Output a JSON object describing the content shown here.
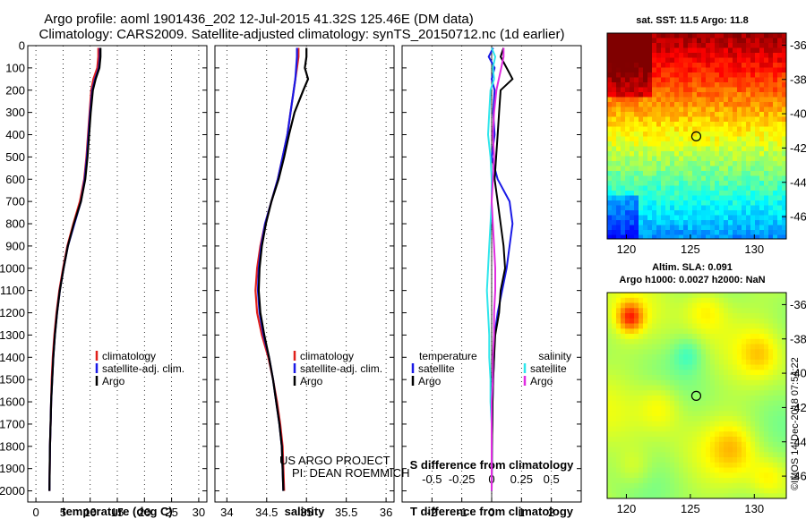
{
  "figure": {
    "title_line1": "Argo profile: aoml 1901436_202 12-Jul-2015 41.32S 125.46E (DM data)",
    "title_line2": "Climatology: CARS2009. Satellite-adjusted climatology: synTS_20150712.nc (1d earlier)",
    "credit_line1": "US ARGO PROJECT",
    "credit_line2": "PI: DEAN ROEMMICH",
    "stamp": "©IMOS 14-Dec-2018 07:54:22"
  },
  "colors": {
    "climatology": "#e0201b",
    "satellite_adj": "#1a1ae6",
    "argo": "#000000",
    "satellite_S": "#2fe6ec",
    "argo_S": "#e02ce0"
  },
  "chart_data": [
    {
      "type": "line",
      "panel": "temperature",
      "xlabel": "temperature (deg C)",
      "ylabel": "",
      "xlim": [
        -1.5,
        31.5
      ],
      "ylim": [
        2050,
        0
      ],
      "xticks": [
        0,
        5,
        10,
        15,
        20,
        25,
        30
      ],
      "yticks": [
        0,
        100,
        200,
        300,
        400,
        500,
        600,
        700,
        800,
        900,
        1000,
        1100,
        1200,
        1300,
        1400,
        1500,
        1600,
        1700,
        1800,
        1900,
        2000
      ],
      "legend": [
        "climatology",
        "satellite-adj. clim.",
        "Argo"
      ],
      "series": [
        {
          "name": "climatology",
          "color_key": "climatology",
          "x": [
            11.5,
            11.5,
            11.3,
            10.6,
            10.2,
            9.9,
            9.6,
            9.3,
            8.9,
            8.1,
            6.9,
            5.8,
            5.0,
            4.3,
            3.8,
            3.4,
            3.1,
            2.9,
            2.8,
            2.7,
            2.6,
            2.5
          ],
          "y": [
            10,
            50,
            100,
            150,
            200,
            300,
            400,
            500,
            600,
            700,
            800,
            900,
            1000,
            1100,
            1200,
            1300,
            1400,
            1500,
            1600,
            1700,
            1800,
            2000
          ]
        },
        {
          "name": "satellite-adj. clim.",
          "color_key": "satellite_adj",
          "x": [
            11.8,
            11.8,
            11.6,
            10.9,
            10.4,
            10.0,
            9.7,
            9.4,
            9.0,
            8.3,
            7.1,
            5.9,
            5.1,
            4.4,
            3.9,
            3.5,
            3.2,
            3.0,
            2.8,
            2.7,
            2.6,
            2.5
          ],
          "y": [
            10,
            50,
            100,
            150,
            200,
            300,
            400,
            500,
            600,
            700,
            800,
            900,
            1000,
            1100,
            1200,
            1300,
            1400,
            1500,
            1600,
            1700,
            1800,
            2000
          ]
        },
        {
          "name": "Argo",
          "color_key": "argo",
          "x": [
            11.9,
            11.9,
            11.7,
            11.0,
            10.5,
            10.1,
            9.8,
            9.5,
            9.1,
            8.3,
            7.0,
            5.9,
            5.1,
            4.4,
            3.9,
            3.5,
            3.2,
            3.0,
            2.8,
            2.7,
            2.6,
            2.5
          ],
          "y": [
            10,
            50,
            100,
            150,
            200,
            300,
            400,
            500,
            600,
            700,
            800,
            900,
            1000,
            1100,
            1200,
            1300,
            1400,
            1500,
            1600,
            1700,
            1800,
            2000
          ]
        }
      ]
    },
    {
      "type": "line",
      "panel": "salinity",
      "xlabel": "salinity",
      "ylabel": "",
      "xlim": [
        33.85,
        36.1
      ],
      "ylim": [
        2050,
        0
      ],
      "xticks": [
        34,
        34.5,
        35,
        35.5,
        36
      ],
      "xtick_labels": [
        "34",
        "34.5",
        "35",
        "35.5",
        "36"
      ],
      "legend": [
        "climatology",
        "satellite-adj. clim.",
        "Argo"
      ],
      "series": [
        {
          "name": "climatology",
          "color_key": "climatology",
          "x": [
            34.9,
            34.9,
            34.88,
            34.86,
            34.84,
            34.8,
            34.76,
            34.7,
            34.64,
            34.56,
            34.48,
            34.42,
            34.38,
            34.36,
            34.38,
            34.44,
            34.52,
            34.58,
            34.63,
            34.67,
            34.7,
            34.72
          ],
          "y": [
            10,
            50,
            100,
            150,
            200,
            300,
            400,
            500,
            600,
            700,
            800,
            900,
            1000,
            1100,
            1200,
            1300,
            1400,
            1500,
            1600,
            1700,
            1800,
            2000
          ]
        },
        {
          "name": "satellite-adj. clim.",
          "color_key": "satellite_adj",
          "x": [
            34.88,
            34.88,
            34.87,
            34.86,
            34.84,
            34.8,
            34.76,
            34.7,
            34.64,
            34.56,
            34.48,
            34.43,
            34.4,
            34.39,
            34.41,
            34.46,
            34.53,
            34.58,
            34.62,
            34.66,
            34.69,
            34.71
          ],
          "y": [
            10,
            50,
            100,
            150,
            200,
            300,
            400,
            500,
            600,
            700,
            800,
            900,
            1000,
            1100,
            1200,
            1300,
            1400,
            1500,
            1600,
            1700,
            1800,
            2000
          ]
        },
        {
          "name": "Argo",
          "color_key": "argo",
          "x": [
            35.0,
            35.0,
            34.98,
            35.02,
            34.96,
            34.85,
            34.78,
            34.72,
            34.65,
            34.56,
            34.49,
            34.44,
            34.41,
            34.4,
            34.42,
            34.47,
            34.53,
            34.58,
            34.62,
            34.66,
            34.69,
            34.71
          ],
          "y": [
            10,
            50,
            100,
            150,
            200,
            300,
            400,
            500,
            600,
            700,
            800,
            900,
            1000,
            1100,
            1200,
            1300,
            1400,
            1500,
            1600,
            1700,
            1800,
            2000
          ]
        }
      ]
    },
    {
      "type": "line",
      "panel": "difference",
      "xlabel": "T difference from climatology",
      "xlabel_top": "S difference from climatology",
      "ylabel": "",
      "xlim": [
        -3,
        3
      ],
      "ylim": [
        2050,
        0
      ],
      "xticks": [
        -2,
        -1,
        0,
        1,
        2
      ],
      "xtick_labels": [
        "-2",
        "-1",
        "0",
        "1",
        "2"
      ],
      "s_xticks": [
        -0.5,
        -0.25,
        0,
        0.25,
        0.5
      ],
      "s_xtick_labels": [
        "-0.5",
        "-0.25",
        "0",
        "0.25",
        "0.5"
      ],
      "s_scale": 4,
      "legend_temperature_title": "temperature",
      "legend_salinity_title": "salinity",
      "legend_temperature": [
        "satellite",
        "Argo"
      ],
      "legend_salinity": [
        "satellite",
        "Argo"
      ],
      "series": [
        {
          "name": "satellite",
          "group": "temperature",
          "color_key": "satellite_adj",
          "x": [
            0.05,
            -0.1,
            0.1,
            0.0,
            0.1,
            0.05,
            0.1,
            0.0,
            0.2,
            0.6,
            0.7,
            0.6,
            0.5,
            0.35,
            0.2,
            0.1,
            0.08,
            0.05,
            0.03,
            0.02,
            0.01,
            0.0
          ],
          "y": [
            10,
            50,
            100,
            150,
            200,
            300,
            400,
            500,
            600,
            700,
            800,
            900,
            1000,
            1100,
            1200,
            1300,
            1400,
            1500,
            1600,
            1700,
            1800,
            2000
          ]
        },
        {
          "name": "Argo",
          "group": "temperature",
          "color_key": "argo",
          "x": [
            0.4,
            0.3,
            0.5,
            0.7,
            0.3,
            0.25,
            0.2,
            0.15,
            0.1,
            0.2,
            0.3,
            0.4,
            0.45,
            0.3,
            0.25,
            0.12,
            0.08,
            0.05,
            0.03,
            0.02,
            0.01,
            0.0
          ],
          "y": [
            10,
            50,
            100,
            150,
            200,
            300,
            400,
            500,
            600,
            700,
            800,
            900,
            1000,
            1100,
            1200,
            1300,
            1400,
            1500,
            1600,
            1700,
            1800,
            2000
          ]
        },
        {
          "name": "satellite",
          "group": "salinity",
          "color_key": "satellite_S",
          "x": [
            0.0,
            0.03,
            0.01,
            0.02,
            -0.01,
            -0.02,
            -0.03,
            -0.01,
            0.0,
            0.0,
            -0.01,
            -0.02,
            -0.03,
            -0.04,
            -0.03,
            -0.02,
            -0.02,
            -0.01,
            -0.01,
            0.0,
            0.0,
            0.0
          ],
          "y": [
            10,
            50,
            100,
            150,
            200,
            300,
            400,
            500,
            600,
            700,
            800,
            900,
            1000,
            1100,
            1200,
            1300,
            1400,
            1500,
            1600,
            1700,
            1800,
            2000
          ]
        },
        {
          "name": "Argo",
          "group": "salinity",
          "color_key": "argo_S",
          "x": [
            0.1,
            0.1,
            0.08,
            0.06,
            0.04,
            0.02,
            0.01,
            0.02,
            0.01,
            0.0,
            0.01,
            0.02,
            0.03,
            0.03,
            0.02,
            0.02,
            0.01,
            0.01,
            0.0,
            0.0,
            0.0,
            0.0
          ],
          "y": [
            10,
            50,
            100,
            150,
            200,
            300,
            400,
            500,
            600,
            700,
            800,
            900,
            1000,
            1100,
            1200,
            1300,
            1400,
            1500,
            1600,
            1700,
            1800,
            2000
          ]
        }
      ]
    },
    {
      "type": "heatmap",
      "panel": "sst_map",
      "title": "sat. SST: 11.5 Argo: 11.8",
      "xlim": [
        118.5,
        132.5
      ],
      "ylim": [
        -47.3,
        -35.3
      ],
      "xticks": [
        120,
        125,
        130
      ],
      "yticks": [
        -36,
        -38,
        -40,
        -42,
        -44,
        -46
      ],
      "marker": {
        "lon": 125.46,
        "lat": -41.32
      }
    },
    {
      "type": "heatmap",
      "panel": "sla_map",
      "title_line1": "Altim. SLA: 0.091",
      "title_line2": "Argo h1000: 0.0027 h2000: NaN",
      "xlim": [
        118.5,
        132.5
      ],
      "ylim": [
        -47.3,
        -35.3
      ],
      "xticks": [
        120,
        125,
        130
      ],
      "yticks": [
        -36,
        -38,
        -40,
        -42,
        -44,
        -46
      ],
      "marker": {
        "lon": 125.46,
        "lat": -41.32
      }
    }
  ]
}
